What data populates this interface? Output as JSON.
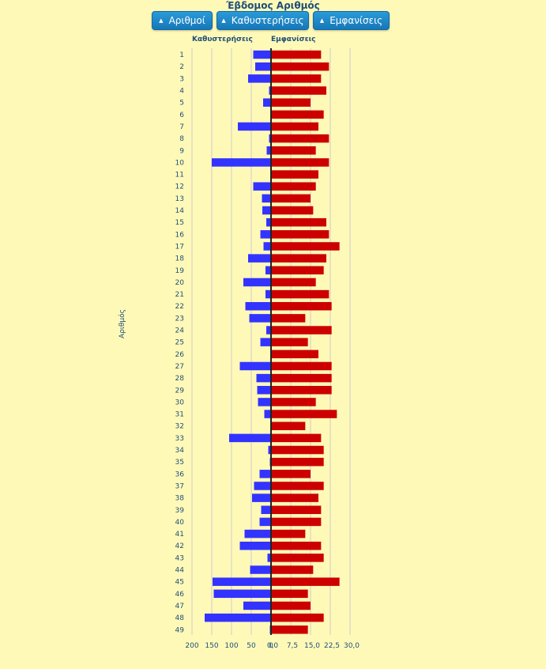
{
  "title": "Έβδομος Αριθμός",
  "buttons": [
    {
      "label": "Αριθμοί",
      "icon": "sort-asc-icon"
    },
    {
      "label": "Καθυστερήσεις",
      "icon": "sort-icon"
    },
    {
      "label": "Εμφανίσεις",
      "icon": "sort-icon"
    }
  ],
  "headers": {
    "left": "Καθυστερήσεις",
    "right": "Εμφανίσεις"
  },
  "ylabel": "Αριθμός",
  "colors": {
    "delays": "#3333ff",
    "appearances": "#cc0000",
    "axis": "#1f4e79",
    "grid": "#cccccc"
  },
  "chart_data": {
    "type": "bar",
    "orientation": "horizontal",
    "categories": [
      "1",
      "2",
      "3",
      "4",
      "5",
      "6",
      "7",
      "8",
      "9",
      "10",
      "11",
      "12",
      "13",
      "14",
      "15",
      "16",
      "17",
      "18",
      "19",
      "20",
      "21",
      "22",
      "23",
      "24",
      "25",
      "26",
      "27",
      "28",
      "29",
      "30",
      "31",
      "32",
      "33",
      "34",
      "35",
      "36",
      "37",
      "38",
      "39",
      "40",
      "41",
      "42",
      "43",
      "44",
      "45",
      "46",
      "47",
      "48",
      "49"
    ],
    "series": [
      {
        "name": "Καθυστερήσεις",
        "values": [
          45,
          40,
          58,
          5,
          20,
          1,
          84,
          5,
          11,
          150,
          2,
          45,
          23,
          22,
          12,
          27,
          19,
          58,
          14,
          70,
          14,
          65,
          55,
          12,
          27,
          1,
          79,
          37,
          35,
          33,
          17,
          0,
          106,
          7,
          3,
          29,
          43,
          48,
          25,
          29,
          67,
          79,
          9,
          53,
          148,
          145,
          70,
          168,
          3
        ]
      },
      {
        "name": "Εμφανίσεις",
        "values": [
          19,
          22,
          19,
          21,
          15,
          20,
          18,
          22,
          17,
          22,
          18,
          17,
          15,
          16,
          21,
          22,
          26,
          21,
          20,
          17,
          22,
          23,
          13,
          23,
          14,
          18,
          23,
          23,
          23,
          17,
          25,
          13,
          19,
          20,
          20,
          15,
          20,
          18,
          19,
          19,
          13,
          19,
          20,
          16,
          26,
          14,
          15,
          20,
          14
        ]
      }
    ],
    "left_axis": {
      "ticks": [
        "200",
        "150",
        "100",
        "50",
        "0"
      ],
      "range": [
        0,
        200
      ]
    },
    "right_axis": {
      "ticks": [
        "0,0",
        "7,5",
        "15,0",
        "22,5",
        "30,0"
      ],
      "range": [
        0,
        30
      ]
    },
    "grid": true
  }
}
